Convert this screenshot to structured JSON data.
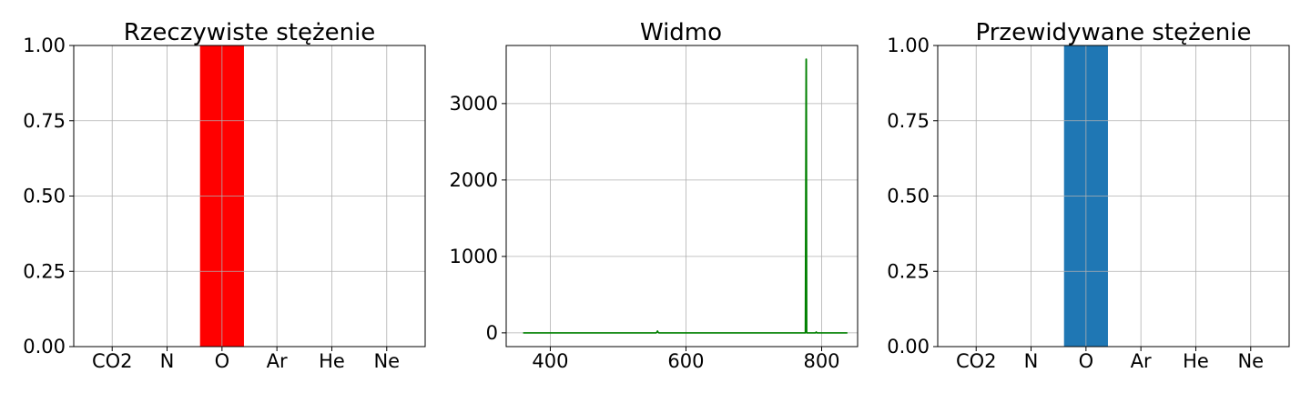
{
  "chart_data": [
    {
      "type": "bar",
      "title": "Rzeczywiste stężenie",
      "categories": [
        "CO2",
        "N",
        "O",
        "Ar",
        "He",
        "Ne"
      ],
      "values": [
        0,
        0,
        1,
        0,
        0,
        0
      ],
      "ylim": [
        0,
        1
      ],
      "yticks": [
        "0.00",
        "0.25",
        "0.50",
        "0.75",
        "1.00"
      ],
      "color": "#ff0000",
      "grid": true
    },
    {
      "type": "line",
      "title": "Widmo",
      "x": [
        360,
        556,
        557,
        558,
        559,
        560,
        776,
        777,
        777.5,
        778,
        779,
        780,
        791,
        792,
        793,
        838
      ],
      "y": [
        0,
        0,
        8,
        25,
        8,
        0,
        0,
        3580,
        3580,
        0,
        0,
        0,
        0,
        12,
        0,
        0
      ],
      "xlim": [
        335,
        853
      ],
      "ylim": [
        -180,
        3760
      ],
      "xticks": [
        400,
        600,
        800
      ],
      "yticks": [
        0,
        1000,
        2000,
        3000
      ],
      "color": "#008000",
      "grid": true
    },
    {
      "type": "bar",
      "title": "Przewidywane stężenie",
      "categories": [
        "CO2",
        "N",
        "O",
        "Ar",
        "He",
        "Ne"
      ],
      "values": [
        0,
        0,
        1,
        0,
        0,
        0
      ],
      "ylim": [
        0,
        1
      ],
      "yticks": [
        "0.00",
        "0.25",
        "0.50",
        "0.75",
        "1.00"
      ],
      "color": "#1f77b4",
      "grid": true
    }
  ]
}
